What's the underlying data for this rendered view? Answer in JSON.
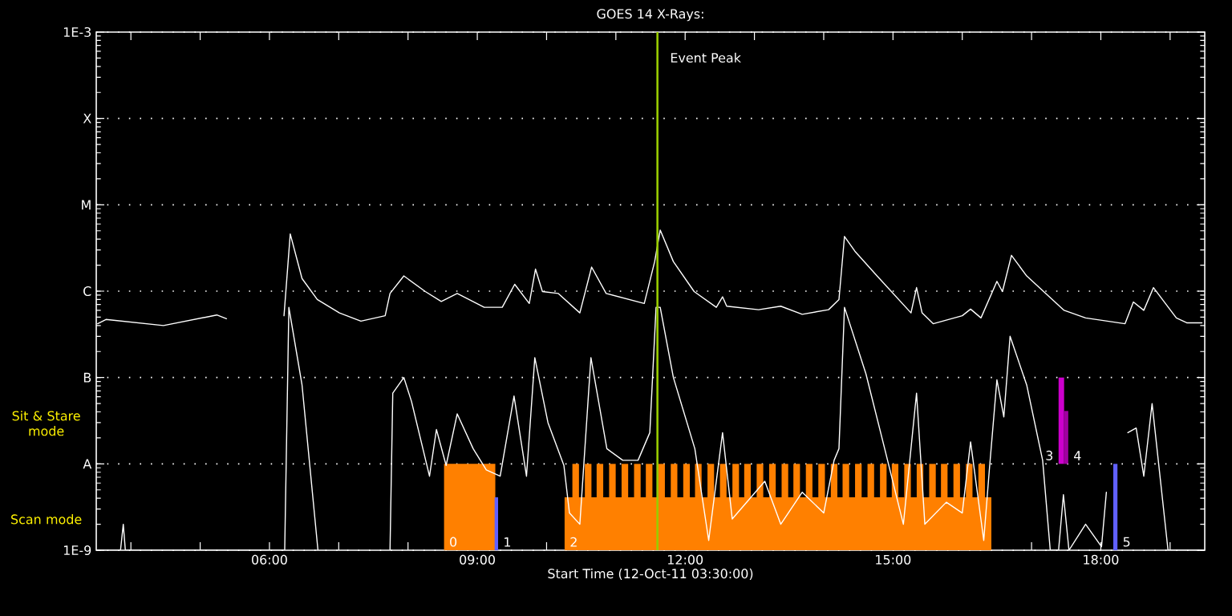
{
  "chart_data": {
    "type": "line",
    "title": "GOES 14 X-Rays:",
    "xlabel": "Start Time (12-Oct-11 03:30:00)",
    "log": "y",
    "grid": "y",
    "xlim": [
      3.5,
      19.5
    ],
    "ylim": [
      1e-09,
      0.001
    ],
    "xticks": [
      {
        "value": 4,
        "label": null
      },
      {
        "value": 5,
        "label": null
      },
      {
        "value": 6,
        "label": "06:00"
      },
      {
        "value": 7,
        "label": null
      },
      {
        "value": 8,
        "label": null
      },
      {
        "value": 9,
        "label": "09:00"
      },
      {
        "value": 10,
        "label": null
      },
      {
        "value": 11,
        "label": null
      },
      {
        "value": 12,
        "label": "12:00"
      },
      {
        "value": 13,
        "label": null
      },
      {
        "value": 14,
        "label": null
      },
      {
        "value": 15,
        "label": "15:00"
      },
      {
        "value": 16,
        "label": null
      },
      {
        "value": 17,
        "label": null
      },
      {
        "value": 18,
        "label": "18:00"
      },
      {
        "value": 19,
        "label": null
      }
    ],
    "yticks": [
      {
        "value": 1e-09,
        "label": "1E-9"
      },
      {
        "value": 1e-08,
        "label": "A"
      },
      {
        "value": 1e-07,
        "label": "B"
      },
      {
        "value": 1e-06,
        "label": "C"
      },
      {
        "value": 1e-05,
        "label": "M"
      },
      {
        "value": 0.0001,
        "label": "X"
      },
      {
        "value": 0.001,
        "label": "1E-3"
      }
    ],
    "series": [
      {
        "type": "area",
        "name": "0",
        "color": "#ff8000",
        "x": [
          8.52,
          8.52,
          9.26,
          9.26
        ],
        "values": [
          1e-09,
          1e-08,
          1e-08,
          1e-09
        ]
      },
      {
        "type": "area",
        "name": "2",
        "color": "#ff8000",
        "x": [
          10.26,
          10.26,
          16.42,
          16.42
        ],
        "values": [
          1e-09,
          4.1e-09,
          4.1e-09,
          1e-09
        ]
      },
      {
        "type": "bar",
        "color": "#ff8000",
        "x": [
          10.42,
          10.6,
          10.77,
          10.95,
          11.13,
          11.31,
          11.48,
          11.66,
          11.84,
          12.02,
          12.19,
          12.37,
          12.55,
          12.73,
          12.9,
          13.08,
          13.26,
          13.44,
          13.61,
          13.79,
          13.97,
          14.15,
          14.32,
          14.5,
          14.68,
          14.86,
          15.03,
          15.21,
          15.39,
          15.57,
          15.74,
          15.92,
          16.1,
          16.28
        ],
        "base": [
          4.1e-09,
          4.1e-09,
          4.1e-09,
          4.1e-09,
          4.1e-09,
          4.1e-09,
          4.1e-09,
          4.1e-09,
          4.1e-09,
          4.1e-09,
          4.1e-09,
          4.1e-09,
          4.1e-09,
          4.1e-09,
          4.1e-09,
          4.1e-09,
          4.1e-09,
          4.1e-09,
          4.1e-09,
          4.1e-09,
          4.1e-09,
          4.1e-09,
          4.1e-09,
          4.1e-09,
          4.1e-09,
          4.1e-09,
          4.1e-09,
          4.1e-09,
          4.1e-09,
          4.1e-09,
          4.1e-09,
          4.1e-09,
          4.1e-09,
          4.1e-09
        ],
        "values": [
          5.9e-09,
          5.9e-09,
          5.9e-09,
          5.9e-09,
          5.9e-09,
          5.9e-09,
          5.9e-09,
          5.9e-09,
          5.9e-09,
          5.9e-09,
          5.9e-09,
          5.9e-09,
          5.9e-09,
          5.9e-09,
          5.9e-09,
          5.9e-09,
          5.9e-09,
          5.9e-09,
          5.9e-09,
          5.9e-09,
          5.9e-09,
          5.9e-09,
          5.9e-09,
          5.9e-09,
          5.9e-09,
          5.9e-09,
          5.9e-09,
          5.9e-09,
          5.9e-09,
          5.9e-09,
          5.9e-09,
          5.9e-09,
          5.9e-09,
          5.9e-09
        ]
      },
      {
        "type": "area",
        "name": "1",
        "color": "#6060ff",
        "x": [
          9.25,
          9.25,
          9.3,
          9.3
        ],
        "values": [
          1e-09,
          4.1e-09,
          4.1e-09,
          1e-09
        ]
      },
      {
        "type": "area",
        "name": "3",
        "color": "#cc00cc",
        "x": [
          17.39,
          17.39,
          17.47,
          17.47
        ],
        "values": [
          1e-08,
          1e-07,
          1e-07,
          1e-08
        ]
      },
      {
        "type": "area",
        "name": "4",
        "color": "#a000a0",
        "x": [
          17.47,
          17.47,
          17.53,
          17.53
        ],
        "values": [
          1e-08,
          4.1e-08,
          4.1e-08,
          1e-08
        ]
      },
      {
        "type": "area",
        "name": "5",
        "color": "#6060ff",
        "x": [
          18.18,
          18.18,
          18.24,
          18.24
        ],
        "values": [
          1e-09,
          1e-08,
          1e-08,
          1e-09
        ]
      },
      {
        "color": "#ffffff",
        "x": [
          3.52,
          3.64,
          4.47,
          5.24,
          5.38,
          5.8,
          6.21,
          6.3,
          6.47,
          6.69,
          7.01,
          7.32,
          7.67,
          7.74,
          7.94,
          8.25,
          8.48,
          8.71,
          9.1,
          9.36,
          9.54,
          9.75,
          9.84,
          9.94,
          10.17,
          10.48,
          10.65,
          10.86,
          11.41,
          11.56,
          11.64,
          11.83,
          12.13,
          12.45,
          12.54,
          12.6,
          13.06,
          13.38,
          13.69,
          14.07,
          14.22,
          14.3,
          14.45,
          14.77,
          15.26,
          15.34,
          15.42,
          15.58,
          16.0,
          16.12,
          16.27,
          16.5,
          16.58,
          16.71,
          16.93,
          17.47,
          17.78,
          18.35,
          18.47,
          18.62,
          18.76,
          19.09,
          19.24,
          19.46
        ],
        "values": [
          4.2e-07,
          4.7e-07,
          4e-07,
          5.3e-07,
          4.8e-07,
          null,
          5.2e-07,
          4.6e-06,
          1.4e-06,
          8e-07,
          5.6e-07,
          4.5e-07,
          5.2e-07,
          9.4e-07,
          1.5e-06,
          9.9e-07,
          7.6e-07,
          9.4e-07,
          6.5e-07,
          6.5e-07,
          1.2e-06,
          7.2e-07,
          1.8e-06,
          9.9e-07,
          9.4e-07,
          5.6e-07,
          1.9e-06,
          9.4e-07,
          7.2e-07,
          2.2e-06,
          5.1e-06,
          2.2e-06,
          9.9e-07,
          6.5e-07,
          8.6e-07,
          6.7e-07,
          6.1e-07,
          6.7e-07,
          5.4e-07,
          6.1e-07,
          8e-07,
          4.3e-06,
          2.9e-06,
          1.5e-06,
          5.6e-07,
          1.1e-06,
          5.6e-07,
          4.2e-07,
          5.2e-07,
          6.2e-07,
          4.9e-07,
          1.3e-06,
          9.9e-07,
          2.6e-06,
          1.5e-06,
          6e-07,
          4.9e-07,
          4.2e-07,
          7.5e-07,
          6e-07,
          1.1e-06,
          4.9e-07,
          4.3e-07,
          4.3e-07
        ]
      },
      {
        "color": "#ffffff",
        "x": [
          3.52,
          3.85,
          3.89,
          3.92,
          6.05,
          6.22,
          6.28,
          6.47,
          6.7,
          7.2,
          7.74,
          7.78,
          7.94,
          8.05,
          8.31,
          8.41,
          8.55,
          8.71,
          8.94,
          9.13,
          9.33,
          9.53,
          9.71,
          9.83,
          10.02,
          10.25,
          10.33,
          10.48,
          10.64,
          10.87,
          11.1,
          11.32,
          11.49,
          11.58,
          11.64,
          11.83,
          12.14,
          12.34,
          12.54,
          12.68,
          13.15,
          13.38,
          13.69,
          14.0,
          14.15,
          14.22,
          14.3,
          14.61,
          14.88,
          15.15,
          15.34,
          15.46,
          15.77,
          16.0,
          16.12,
          16.31,
          16.39,
          16.5,
          16.6,
          16.69,
          16.93,
          17.16,
          17.27,
          17.39,
          17.46,
          17.54,
          17.78,
          18.01,
          18.08,
          18.24,
          18.39,
          18.51,
          18.62,
          18.74,
          18.97,
          19.47
        ],
        "values": [
          1e-09,
          1e-09,
          2e-09,
          1e-09,
          1e-09,
          1e-09,
          6.5e-07,
          8.2e-08,
          1e-09,
          null,
          1e-09,
          6.6e-08,
          1e-07,
          5.3e-08,
          7.2e-09,
          2.5e-08,
          9.6e-09,
          3.8e-08,
          1.5e-08,
          8.5e-09,
          7.2e-09,
          6.1e-08,
          7.2e-09,
          1.7e-07,
          3e-08,
          9.6e-09,
          2.7e-09,
          2e-09,
          1.7e-07,
          1.5e-08,
          1.1e-08,
          1.1e-08,
          2.3e-08,
          6.5e-07,
          6.5e-07,
          1e-07,
          1.5e-08,
          1.3e-09,
          2.3e-08,
          2.3e-09,
          6.3e-09,
          2e-09,
          4.7e-09,
          2.7e-09,
          1.1e-08,
          1.5e-08,
          6.5e-07,
          1.1e-07,
          1.5e-08,
          2e-09,
          6.6e-08,
          2e-09,
          3.6e-09,
          2.7e-09,
          1.8e-08,
          1.3e-09,
          8.4e-09,
          9.4e-08,
          3.5e-08,
          3e-07,
          8.2e-08,
          1.1e-08,
          1e-09,
          1e-09,
          4.4e-09,
          1e-09,
          2e-09,
          1.1e-09,
          4.7e-09,
          null,
          2.3e-08,
          2.6e-08,
          7.2e-09,
          5e-08,
          1e-09,
          1e-09
        ]
      }
    ],
    "ref_lines": [
      {
        "axis": "x",
        "value": 11.6,
        "label": "Event Peak",
        "color": "#99cc00"
      }
    ],
    "annotations": [
      "Sit & Stare mode",
      "Scan mode"
    ]
  }
}
